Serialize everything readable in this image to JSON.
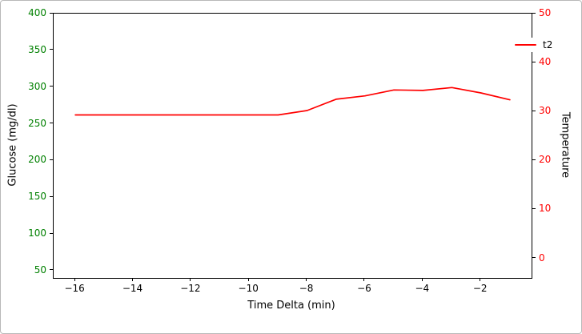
{
  "figure": {
    "xlabel": "Time Delta (min)",
    "left_axis_label": "Glucose (mg/dl)",
    "right_axis_label": "Temperature",
    "legend_label": "t2"
  },
  "colors": {
    "left_axis_text": "#008000",
    "right_axis_text": "#ff0000",
    "x_axis_text": "#000000",
    "line": "#ff0000",
    "spine": "#000000"
  },
  "chart_data": {
    "type": "line",
    "title": "",
    "xlabel": "Time Delta (min)",
    "ylabel_left": "Glucose (mg/dl)",
    "ylabel_right": "Temperature",
    "grid": false,
    "legend_position": "upper right",
    "xlim": [
      -16.75,
      -0.25
    ],
    "x_ticks": [
      -16,
      -14,
      -12,
      -10,
      -8,
      -6,
      -4,
      -2
    ],
    "left_ylim": [
      40,
      400
    ],
    "left_ticks": [
      50,
      100,
      150,
      200,
      250,
      300,
      350,
      400
    ],
    "right_ylim": [
      -4,
      50
    ],
    "right_ticks": [
      0,
      10,
      20,
      30,
      40,
      50
    ],
    "series": [
      {
        "name": "t2",
        "axis": "right",
        "color": "#ff0000",
        "x": [
          -16,
          -15,
          -14,
          -13,
          -12,
          -11,
          -10,
          -9,
          -8,
          -7,
          -6,
          -5,
          -4,
          -3,
          -2,
          -1
        ],
        "y": [
          29.3,
          29.3,
          29.3,
          29.3,
          29.3,
          29.3,
          29.3,
          29.3,
          30.2,
          32.5,
          33.2,
          34.4,
          34.3,
          34.9,
          33.8,
          32.4
        ]
      }
    ]
  }
}
